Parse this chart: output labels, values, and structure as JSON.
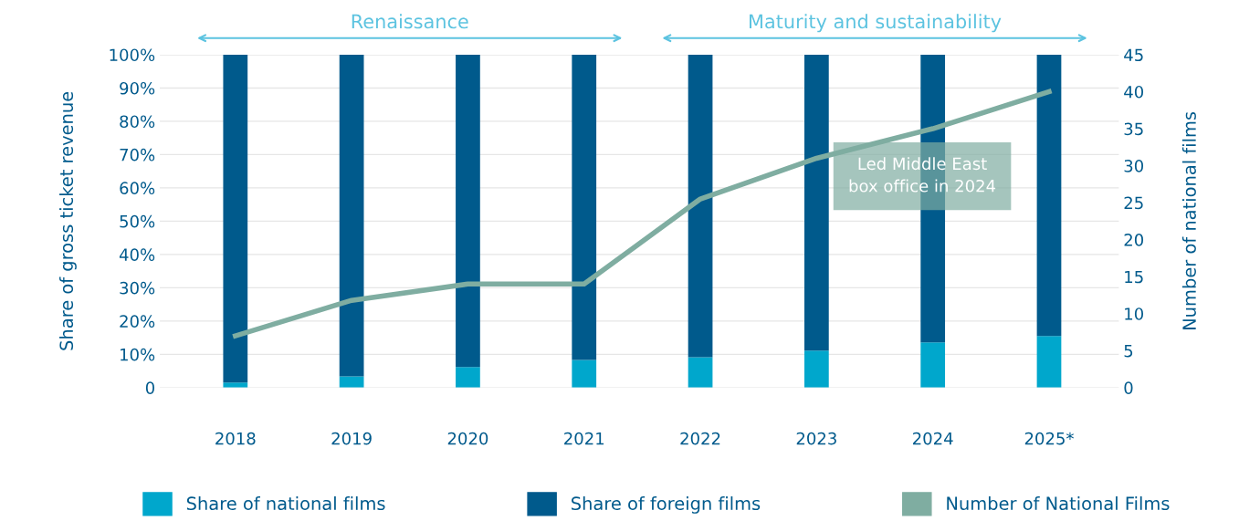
{
  "chart_data": {
    "type": "bar",
    "stacked": true,
    "categories": [
      "2018",
      "2019",
      "2020",
      "2021",
      "2022",
      "2023",
      "2024",
      "2025*"
    ],
    "series": [
      {
        "name": "Share of national films",
        "color": "#00a7cc",
        "values": [
          1.5,
          3.4,
          6.2,
          8.3,
          9.1,
          11.1,
          13.6,
          15.5
        ]
      },
      {
        "name": "Share of foreign films",
        "color": "#005a8c",
        "values": [
          98.5,
          96.6,
          93.8,
          91.7,
          90.9,
          88.9,
          86.4,
          84.5
        ]
      },
      {
        "name": "Number of National Films",
        "type": "line",
        "axis": "y2",
        "color": "#7fada1",
        "values": [
          7,
          11.8,
          14,
          14,
          25.5,
          31,
          35,
          40
        ]
      }
    ],
    "ylabel": "Share of gross ticket revenue",
    "y2label": "Number of national films",
    "ylim": [
      0,
      100
    ],
    "yticks": [
      {
        "value": 0,
        "label": "0"
      },
      {
        "value": 10,
        "label": "10%"
      },
      {
        "value": 20,
        "label": "20%"
      },
      {
        "value": 30,
        "label": "30%"
      },
      {
        "value": 40,
        "label": "40%"
      },
      {
        "value": 50,
        "label": "50%"
      },
      {
        "value": 60,
        "label": "60%"
      },
      {
        "value": 70,
        "label": "70%"
      },
      {
        "value": 80,
        "label": "80%"
      },
      {
        "value": 90,
        "label": "90%"
      },
      {
        "value": 100,
        "label": "100%"
      }
    ],
    "y2lim": [
      0,
      45
    ],
    "y2ticks": [
      0,
      5,
      10,
      15,
      20,
      25,
      30,
      35,
      40,
      45
    ],
    "annotations": [
      "Renaissance",
      "Maturity and sustainability",
      "Led Middle East\nbox office in 2024"
    ],
    "grid": "y",
    "legend": "bottom",
    "marker": "none",
    "line_style": "solid"
  }
}
